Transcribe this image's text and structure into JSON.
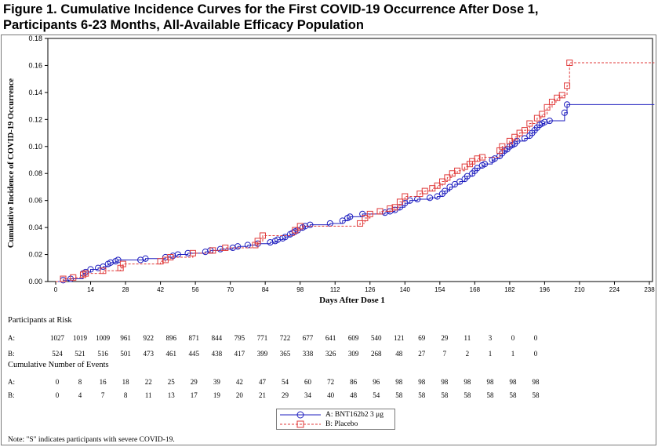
{
  "figure": {
    "title_line1": "Figure 1. Cumulative Incidence Curves for the First COVID-19 Occurrence After Dose 1,",
    "title_line2": "Participants 6-23 Months, All-Available Efficacy Population",
    "note": "Note: \"S\" indicates participants with severe COVID-19."
  },
  "chart_data": {
    "type": "line",
    "step": true,
    "xlabel": "Days After Dose 1",
    "ylabel": "Cumulative Incidence of COVID-19 Occurrence",
    "xlim": [
      0,
      240
    ],
    "ylim": [
      0,
      0.18
    ],
    "x_ticks": [
      0,
      14,
      28,
      42,
      56,
      70,
      84,
      98,
      112,
      126,
      140,
      154,
      168,
      182,
      196,
      210,
      224,
      238
    ],
    "y_ticks": [
      "0.00",
      "0.02",
      "0.04",
      "0.06",
      "0.08",
      "0.10",
      "0.12",
      "0.14",
      "0.16",
      "0.18"
    ],
    "legend_position": "bottom-center",
    "series": [
      {
        "name": "A: BNT162b2 3 μg",
        "color": "#1f1fbf",
        "line_style": "solid",
        "marker": "circle",
        "points": [
          [
            3,
            0.001
          ],
          [
            6,
            0.002
          ],
          [
            11,
            0.006
          ],
          [
            12,
            0.007
          ],
          [
            14,
            0.009
          ],
          [
            17,
            0.01
          ],
          [
            19,
            0.011
          ],
          [
            21,
            0.013
          ],
          [
            22,
            0.014
          ],
          [
            24,
            0.015
          ],
          [
            25,
            0.016
          ],
          [
            34,
            0.016
          ],
          [
            36,
            0.017
          ],
          [
            44,
            0.018
          ],
          [
            47,
            0.019
          ],
          [
            49,
            0.02
          ],
          [
            53,
            0.021
          ],
          [
            60,
            0.022
          ],
          [
            62,
            0.023
          ],
          [
            66,
            0.024
          ],
          [
            71,
            0.025
          ],
          [
            73,
            0.026
          ],
          [
            77,
            0.027
          ],
          [
            81,
            0.028
          ],
          [
            86,
            0.029
          ],
          [
            88,
            0.03
          ],
          [
            89,
            0.031
          ],
          [
            91,
            0.032
          ],
          [
            92,
            0.033
          ],
          [
            94,
            0.035
          ],
          [
            95,
            0.036
          ],
          [
            96,
            0.037
          ],
          [
            97,
            0.038
          ],
          [
            99,
            0.04
          ],
          [
            100,
            0.041
          ],
          [
            102,
            0.042
          ],
          [
            110,
            0.043
          ],
          [
            115,
            0.045
          ],
          [
            117,
            0.047
          ],
          [
            118,
            0.048
          ],
          [
            123,
            0.05
          ],
          [
            132,
            0.051
          ],
          [
            134,
            0.052
          ],
          [
            136,
            0.053
          ],
          [
            138,
            0.055
          ],
          [
            140,
            0.058
          ],
          [
            142,
            0.06
          ],
          [
            145,
            0.061
          ],
          [
            150,
            0.062
          ],
          [
            153,
            0.063
          ],
          [
            155,
            0.065
          ],
          [
            156,
            0.067
          ],
          [
            158,
            0.07
          ],
          [
            160,
            0.072
          ],
          [
            162,
            0.074
          ],
          [
            164,
            0.076
          ],
          [
            165,
            0.078
          ],
          [
            167,
            0.08
          ],
          [
            168,
            0.082
          ],
          [
            169,
            0.084
          ],
          [
            171,
            0.086
          ],
          [
            172,
            0.087
          ],
          [
            175,
            0.09
          ],
          [
            176,
            0.091
          ],
          [
            178,
            0.093
          ],
          [
            179,
            0.095
          ],
          [
            180,
            0.097
          ],
          [
            181,
            0.098
          ],
          [
            182,
            0.1
          ],
          [
            183,
            0.101
          ],
          [
            184,
            0.102
          ],
          [
            185,
            0.104
          ],
          [
            188,
            0.106
          ],
          [
            190,
            0.108
          ],
          [
            191,
            0.11
          ],
          [
            192,
            0.112
          ],
          [
            193,
            0.114
          ],
          [
            194,
            0.116
          ],
          [
            195,
            0.117
          ],
          [
            196,
            0.118
          ],
          [
            198,
            0.119
          ],
          [
            204,
            0.125
          ],
          [
            205,
            0.131
          ],
          [
            240,
            0.131
          ]
        ]
      },
      {
        "name": "B: Placebo",
        "color": "#e03a3a",
        "line_style": "dashed",
        "marker": "square",
        "points": [
          [
            3,
            0.002
          ],
          [
            7,
            0.003
          ],
          [
            11,
            0.005
          ],
          [
            12,
            0.006
          ],
          [
            19,
            0.008
          ],
          [
            26,
            0.01
          ],
          [
            27,
            0.013
          ],
          [
            42,
            0.015
          ],
          [
            44,
            0.016
          ],
          [
            46,
            0.018
          ],
          [
            55,
            0.021
          ],
          [
            63,
            0.023
          ],
          [
            68,
            0.025
          ],
          [
            80,
            0.027
          ],
          [
            81,
            0.03
          ],
          [
            83,
            0.034
          ],
          [
            96,
            0.038
          ],
          [
            98,
            0.041
          ],
          [
            122,
            0.043
          ],
          [
            124,
            0.047
          ],
          [
            126,
            0.05
          ],
          [
            130,
            0.052
          ],
          [
            134,
            0.054
          ],
          [
            136,
            0.055
          ],
          [
            138,
            0.059
          ],
          [
            140,
            0.063
          ],
          [
            146,
            0.065
          ],
          [
            148,
            0.067
          ],
          [
            151,
            0.069
          ],
          [
            153,
            0.071
          ],
          [
            155,
            0.074
          ],
          [
            157,
            0.077
          ],
          [
            159,
            0.08
          ],
          [
            161,
            0.082
          ],
          [
            164,
            0.085
          ],
          [
            166,
            0.087
          ],
          [
            167,
            0.089
          ],
          [
            169,
            0.091
          ],
          [
            171,
            0.092
          ],
          [
            178,
            0.097
          ],
          [
            179,
            0.1
          ],
          [
            182,
            0.104
          ],
          [
            184,
            0.107
          ],
          [
            186,
            0.11
          ],
          [
            188,
            0.112
          ],
          [
            190,
            0.117
          ],
          [
            193,
            0.121
          ],
          [
            195,
            0.124
          ],
          [
            197,
            0.129
          ],
          [
            199,
            0.133
          ],
          [
            201,
            0.136
          ],
          [
            203,
            0.138
          ],
          [
            205,
            0.145
          ],
          [
            206,
            0.162
          ],
          [
            240,
            0.162
          ]
        ]
      }
    ],
    "risk_table": {
      "title": "Participants at Risk",
      "rows": [
        {
          "label": "A:",
          "values": [
            "1027",
            "1019",
            "1009",
            "961",
            "922",
            "896",
            "871",
            "844",
            "795",
            "771",
            "722",
            "677",
            "641",
            "609",
            "540",
            "121",
            "69",
            "29",
            "11",
            "3",
            "0",
            "0"
          ]
        },
        {
          "label": "B:",
          "values": [
            "524",
            "521",
            "516",
            "501",
            "473",
            "461",
            "445",
            "438",
            "417",
            "399",
            "365",
            "338",
            "326",
            "309",
            "268",
            "48",
            "27",
            "7",
            "2",
            "1",
            "1",
            "0"
          ]
        }
      ]
    },
    "events_table": {
      "title": "Cumulative Number of Events",
      "rows": [
        {
          "label": "A:",
          "values": [
            "0",
            "8",
            "16",
            "18",
            "22",
            "25",
            "29",
            "39",
            "42",
            "47",
            "54",
            "60",
            "72",
            "86",
            "96",
            "98",
            "98",
            "98",
            "98",
            "98",
            "98",
            "98"
          ]
        },
        {
          "label": "B:",
          "values": [
            "0",
            "4",
            "7",
            "8",
            "11",
            "13",
            "17",
            "19",
            "20",
            "21",
            "29",
            "34",
            "40",
            "48",
            "54",
            "58",
            "58",
            "58",
            "58",
            "58",
            "58",
            "58"
          ]
        }
      ]
    }
  }
}
